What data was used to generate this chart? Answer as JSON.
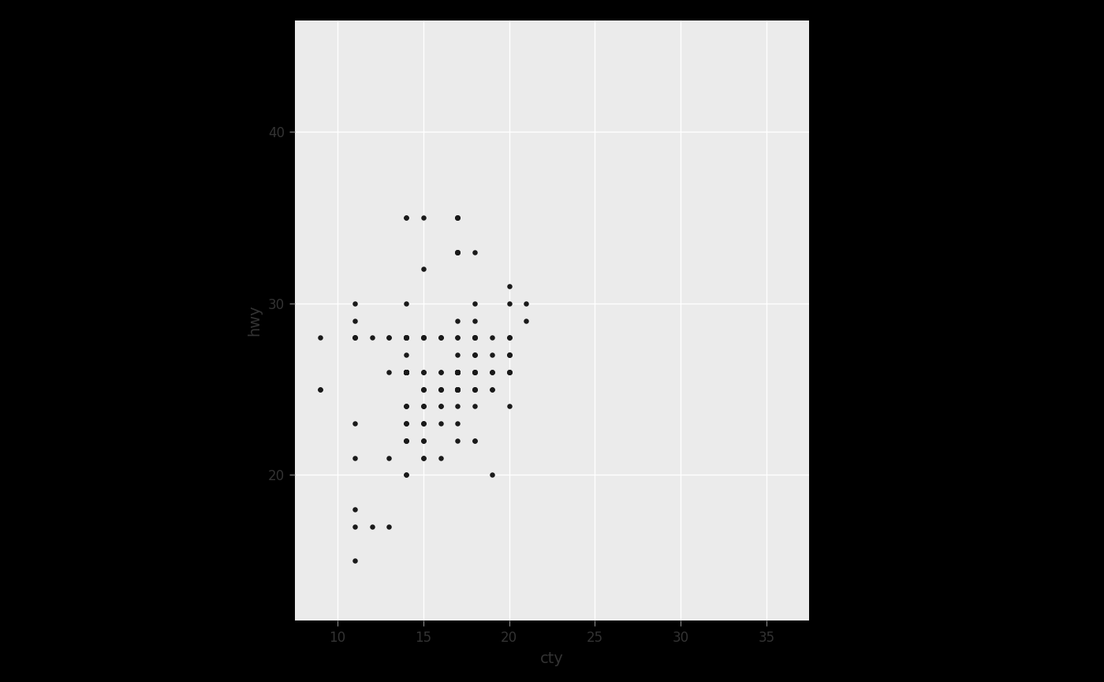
{
  "cty": [
    18,
    21,
    20,
    21,
    16,
    18,
    18,
    18,
    16,
    20,
    19,
    15,
    17,
    17,
    15,
    15,
    17,
    16,
    14,
    11,
    14,
    13,
    12,
    16,
    14,
    20,
    15,
    11,
    14,
    13,
    14,
    14,
    11,
    18,
    16,
    18,
    16,
    18,
    18,
    16,
    18,
    18,
    20,
    15,
    15,
    15,
    15,
    14,
    14,
    14,
    15,
    14,
    15,
    15,
    14,
    14,
    15,
    16,
    17,
    17,
    17,
    17,
    15,
    11,
    15,
    20,
    20,
    20,
    20,
    18,
    20,
    19,
    18,
    17,
    15,
    16,
    14,
    12,
    13,
    11,
    11,
    11,
    9,
    14,
    14,
    11,
    14,
    15,
    13,
    14,
    14,
    14,
    15,
    14,
    14,
    15,
    15,
    16,
    17,
    17,
    17,
    14,
    16,
    14,
    17,
    17,
    15,
    15,
    11,
    14,
    18,
    20,
    18,
    18,
    17,
    17,
    17,
    17,
    11,
    15,
    18,
    17,
    18,
    17,
    19,
    19,
    17,
    17,
    17,
    18,
    18,
    20,
    18,
    17,
    16,
    16,
    17,
    17,
    18,
    19,
    18,
    17,
    17,
    17,
    17,
    17,
    17,
    17,
    17,
    18,
    17,
    19,
    17,
    17,
    17,
    17,
    17,
    17,
    18,
    17,
    17,
    17,
    18,
    17,
    19,
    19,
    20,
    20,
    20,
    20,
    18,
    17,
    17,
    17,
    11,
    14,
    14,
    14,
    13,
    14,
    14,
    14,
    14,
    14,
    14,
    14,
    14,
    14,
    14,
    14,
    14,
    14,
    14,
    9,
    9,
    15,
    14,
    14,
    14,
    14,
    14,
    14,
    14,
    14,
    14,
    14,
    14,
    14,
    14,
    14,
    14,
    14,
    14,
    14,
    14,
    14,
    14,
    14,
    14,
    14,
    15,
    15,
    14,
    14,
    14,
    14,
    14,
    14,
    14
  ],
  "hwy": [
    29,
    29,
    31,
    30,
    26,
    26,
    27,
    26,
    25,
    28,
    27,
    25,
    25,
    25,
    25,
    24,
    25,
    23,
    20,
    15,
    20,
    17,
    17,
    26,
    23,
    26,
    25,
    17,
    22,
    21,
    23,
    24,
    18,
    28,
    25,
    28,
    25,
    30,
    27,
    24,
    26,
    25,
    30,
    22,
    23,
    22,
    21,
    22,
    22,
    22,
    22,
    23,
    23,
    24,
    24,
    24,
    24,
    25,
    25,
    25,
    25,
    25,
    25,
    21,
    21,
    27,
    27,
    27,
    27,
    27,
    28,
    28,
    28,
    28,
    28,
    28,
    28,
    28,
    28,
    28,
    28,
    28,
    28,
    28,
    28,
    28,
    28,
    28,
    28,
    28,
    28,
    28,
    28,
    28,
    28,
    28,
    28,
    28,
    35,
    35,
    35,
    35,
    28,
    35,
    35,
    35,
    35,
    32,
    30,
    30,
    28,
    28,
    28,
    28,
    26,
    26,
    26,
    26,
    23,
    23,
    24,
    24,
    25,
    25,
    25,
    25,
    25,
    25,
    25,
    25,
    25,
    24,
    25,
    26,
    24,
    21,
    22,
    23,
    22,
    20,
    33,
    33,
    33,
    33,
    33,
    33,
    33,
    29,
    25,
    22,
    28,
    26,
    27,
    26,
    26,
    26,
    26,
    26,
    26,
    26,
    26,
    26,
    26,
    26,
    26,
    26,
    26,
    26,
    26,
    26,
    26,
    26,
    26,
    26,
    29,
    27,
    26,
    26,
    26,
    26,
    26,
    26,
    26,
    26,
    26,
    26,
    26,
    26,
    26,
    26,
    26,
    26,
    26,
    25,
    25,
    26,
    26,
    26,
    26,
    26,
    26,
    26,
    26,
    26,
    26,
    26,
    26,
    26,
    26,
    26,
    26,
    26,
    26,
    26,
    26,
    26,
    26,
    26,
    26,
    26,
    26,
    26,
    26,
    26,
    26,
    26,
    26,
    26,
    26
  ],
  "point_color": "#1a1a1a",
  "point_size": 22,
  "bg_color": "#ebebeb",
  "grid_color": "#ffffff",
  "outer_bg": "#000000",
  "xlabel": "cty",
  "ylabel": "hwy",
  "xlim": [
    7.5,
    37.5
  ],
  "ylim": [
    11.5,
    46.5
  ],
  "xticks": [
    10,
    15,
    20,
    25,
    30,
    35
  ],
  "yticks": [
    20,
    30,
    40
  ],
  "tick_fontsize": 12,
  "label_fontsize": 14,
  "fig_width": 14.0,
  "fig_height": 8.65
}
